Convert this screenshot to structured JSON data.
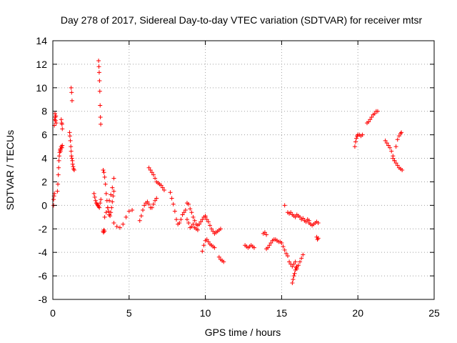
{
  "colors": {
    "marker": "#ff0000",
    "grid": "#a0a0a0",
    "frame": "#000000",
    "background": "#ffffff"
  },
  "chart_data": {
    "type": "scatter",
    "title": "Day 278 of 2017, Sidereal Day-to-day VTEC variation (SDTVAR) for receiver mtsr",
    "xlabel": "GPS time / hours",
    "ylabel": "SDTVAR / TECUs",
    "xlim": [
      0,
      25
    ],
    "ylim": [
      -8,
      14
    ],
    "grid": true,
    "marker": "plus",
    "x_ticks": [
      0,
      5,
      10,
      15,
      20,
      25
    ],
    "y_ticks": [
      -8,
      -6,
      -4,
      -2,
      0,
      2,
      4,
      6,
      8,
      10,
      12,
      14
    ],
    "x_tick_labels": [
      "0",
      "5",
      "10",
      "15",
      "20",
      "25"
    ],
    "y_tick_labels": [
      "-8",
      "-6",
      "-4",
      "-2",
      "0",
      "2",
      "4",
      "6",
      "8",
      "10",
      "12",
      "14"
    ],
    "series": [
      {
        "name": "SDTVAR",
        "segments": [
          {
            "x": [
              0.05,
              0.1,
              0.12,
              0.14,
              0.16,
              0.18,
              0.2,
              0.22
            ],
            "y": [
              0.0,
              6.8,
              7.3,
              7.8,
              7.5,
              7.2,
              7.6,
              7.0
            ]
          },
          {
            "x": [
              0.05,
              0.08,
              0.1
            ],
            "y": [
              0.5,
              0.8,
              1.0
            ]
          },
          {
            "x": [
              0.3,
              0.33,
              0.36,
              0.38,
              0.4,
              0.42,
              0.45,
              0.48,
              0.5
            ],
            "y": [
              1.2,
              1.8,
              2.6,
              3.2,
              3.8,
              4.2,
              4.5,
              4.7,
              4.6
            ]
          },
          {
            "x": [
              0.5,
              0.55,
              0.6,
              0.62
            ],
            "y": [
              4.8,
              5.0,
              4.9,
              5.1
            ]
          },
          {
            "x": [
              0.55,
              0.58,
              0.6,
              0.62
            ],
            "y": [
              7.3,
              7.0,
              6.9,
              6.5
            ]
          },
          {
            "x": [
              1.1,
              1.12,
              1.15,
              1.18,
              1.2,
              1.22,
              1.25,
              1.28,
              1.3,
              1.33,
              1.36,
              1.4
            ],
            "y": [
              6.2,
              5.9,
              5.5,
              5.0,
              4.6,
              4.2,
              4.0,
              3.8,
              3.5,
              3.3,
              3.1,
              3.0
            ]
          },
          {
            "x": [
              1.2,
              1.23,
              1.26
            ],
            "y": [
              10.0,
              9.6,
              8.9
            ]
          },
          {
            "x": [
              2.7,
              2.75,
              2.8,
              2.85,
              2.9,
              2.95,
              3.0,
              3.05,
              3.1,
              3.15
            ],
            "y": [
              1.0,
              0.7,
              0.4,
              0.2,
              0.1,
              0.0,
              -0.1,
              -0.2,
              0.2,
              0.5
            ]
          },
          {
            "x": [
              3.0,
              3.02,
              3.04,
              3.06,
              3.08,
              3.1,
              3.12,
              3.14
            ],
            "y": [
              12.3,
              11.8,
              11.3,
              10.6,
              9.7,
              8.5,
              7.5,
              6.9
            ]
          },
          {
            "x": [
              3.3,
              3.32,
              3.35,
              3.38
            ],
            "y": [
              -2.2,
              -2.3,
              -2.1,
              -2.2
            ]
          },
          {
            "x": [
              3.3,
              3.35,
              3.4,
              3.45,
              3.5,
              3.55,
              3.6,
              3.65,
              3.7,
              3.75,
              3.8,
              3.85,
              3.9,
              3.95,
              4.0
            ],
            "y": [
              3.0,
              2.8,
              2.4,
              1.8,
              1.0,
              0.4,
              -0.2,
              -0.5,
              -0.8,
              -0.9,
              -0.6,
              -0.2,
              0.3,
              0.8,
              1.2
            ]
          },
          {
            "x": [
              3.4,
              3.5,
              3.6,
              3.7,
              3.8,
              3.9,
              4.0
            ],
            "y": [
              -1.0,
              -0.6,
              -0.2,
              0.4,
              0.9,
              1.5,
              2.3
            ]
          },
          {
            "x": [
              4.0,
              4.2,
              4.4,
              4.6,
              4.8,
              5.0,
              5.2
            ],
            "y": [
              -1.5,
              -1.8,
              -1.9,
              -1.6,
              -1.0,
              -0.5,
              -0.4
            ]
          },
          {
            "x": [
              5.7,
              5.8,
              5.9,
              6.0,
              6.1,
              6.2,
              6.3,
              6.4,
              6.5,
              6.6,
              6.7,
              6.8
            ],
            "y": [
              -1.3,
              -0.9,
              -0.4,
              0.0,
              0.2,
              0.3,
              0.1,
              -0.2,
              -0.2,
              0.1,
              0.4,
              0.6
            ]
          },
          {
            "x": [
              6.3,
              6.4,
              6.5,
              6.6,
              6.7,
              6.8,
              6.9,
              7.0,
              7.1,
              7.2,
              7.3
            ],
            "y": [
              3.2,
              3.0,
              2.8,
              2.6,
              2.3,
              2.0,
              1.9,
              1.8,
              1.7,
              1.5,
              1.3
            ]
          },
          {
            "x": [
              7.7,
              7.8,
              7.9,
              8.0,
              8.1,
              8.2,
              8.3,
              8.4,
              8.5,
              8.6,
              8.7
            ],
            "y": [
              1.1,
              0.6,
              0.1,
              -0.5,
              -1.2,
              -1.6,
              -1.5,
              -1.2,
              -0.8,
              -0.6,
              -0.4
            ]
          },
          {
            "x": [
              8.8,
              8.9,
              9.0,
              9.1,
              9.2,
              9.3,
              9.4,
              9.5,
              9.6,
              9.7,
              9.8,
              9.9,
              10.0
            ],
            "y": [
              0.2,
              0.1,
              -0.3,
              -0.6,
              -1.0,
              -1.3,
              -1.6,
              -1.7,
              -1.6,
              -1.4,
              -1.2,
              -1.0,
              -0.9
            ]
          },
          {
            "x": [
              8.8,
              8.9,
              9.0,
              9.1,
              9.2,
              9.3,
              9.4,
              9.5
            ],
            "y": [
              -1.2,
              -1.5,
              -1.9,
              -1.8,
              -1.6,
              -1.9,
              -2.0,
              -2.1
            ]
          },
          {
            "x": [
              10.0,
              10.1,
              10.2,
              10.3,
              10.4,
              10.5,
              10.6,
              10.7,
              10.8,
              10.9,
              11.0
            ],
            "y": [
              -1.0,
              -1.2,
              -1.4,
              -1.7,
              -2.0,
              -2.2,
              -2.4,
              -2.3,
              -2.2,
              -2.1,
              -2.0
            ]
          },
          {
            "x": [
              9.8,
              9.9,
              10.0,
              10.1,
              10.2,
              10.3,
              10.4,
              10.5,
              10.6
            ],
            "y": [
              -3.9,
              -3.4,
              -3.0,
              -2.9,
              -3.1,
              -3.3,
              -3.4,
              -3.5,
              -3.6
            ]
          },
          {
            "x": [
              10.9,
              11.0,
              11.1,
              11.2
            ],
            "y": [
              -4.4,
              -4.6,
              -4.7,
              -4.8
            ]
          },
          {
            "x": [
              12.6,
              12.7,
              12.8,
              12.9,
              13.0,
              13.1,
              13.2
            ],
            "y": [
              -3.4,
              -3.5,
              -3.6,
              -3.5,
              -3.4,
              -3.5,
              -3.6
            ]
          },
          {
            "x": [
              13.8,
              13.9,
              14.0
            ],
            "y": [
              -2.4,
              -2.3,
              -2.5
            ]
          },
          {
            "x": [
              14.0,
              14.1,
              14.2,
              14.3,
              14.4,
              14.5,
              14.6,
              14.7,
              14.8,
              14.9,
              15.0,
              15.1,
              15.2,
              15.3,
              15.4
            ],
            "y": [
              -3.7,
              -3.6,
              -3.4,
              -3.2,
              -3.0,
              -2.9,
              -2.9,
              -3.0,
              -3.1,
              -3.1,
              -3.2,
              -3.5,
              -3.8,
              -4.1,
              -4.3
            ]
          },
          {
            "x": [
              15.5,
              15.6,
              15.7,
              15.8,
              15.9,
              16.0,
              16.1,
              16.2,
              16.3,
              16.4
            ],
            "y": [
              -4.8,
              -5.0,
              -5.2,
              -5.0,
              -4.8,
              -5.2,
              -5.1,
              -4.8,
              -4.5,
              -4.2
            ]
          },
          {
            "x": [
              15.7,
              15.75,
              15.8,
              15.85,
              15.9,
              15.95,
              16.0
            ],
            "y": [
              -6.6,
              -6.3,
              -6.0,
              -5.8,
              -5.5,
              -5.3,
              -5.4
            ]
          },
          {
            "x": [
              15.4,
              15.5,
              15.6,
              15.7,
              15.8,
              15.9,
              16.0,
              16.1,
              16.2,
              16.3,
              16.4,
              16.5,
              16.6,
              16.7,
              16.8
            ],
            "y": [
              -0.6,
              -0.7,
              -0.6,
              -0.8,
              -0.9,
              -1.0,
              -0.8,
              -0.9,
              -1.0,
              -1.2,
              -1.1,
              -1.3,
              -1.4,
              -1.2,
              -1.3
            ]
          },
          {
            "x": [
              15.2
            ],
            "y": [
              0.0
            ]
          },
          {
            "x": [
              16.8,
              16.9,
              17.0,
              17.1,
              17.2,
              17.3,
              17.4
            ],
            "y": [
              -1.5,
              -1.6,
              -1.7,
              -1.6,
              -1.5,
              -1.4,
              -1.5
            ]
          },
          {
            "x": [
              17.3,
              17.35,
              17.4
            ],
            "y": [
              -2.7,
              -2.9,
              -2.8
            ]
          },
          {
            "x": [
              19.8,
              19.85,
              19.9,
              19.95,
              20.0,
              20.1,
              20.2,
              20.3
            ],
            "y": [
              5.0,
              5.4,
              5.7,
              5.9,
              6.0,
              6.0,
              5.9,
              6.0
            ]
          },
          {
            "x": [
              20.6,
              20.7,
              20.8,
              20.9,
              21.0,
              21.1,
              21.2,
              21.3
            ],
            "y": [
              7.0,
              7.1,
              7.3,
              7.5,
              7.7,
              7.8,
              8.0,
              8.0
            ]
          },
          {
            "x": [
              21.8,
              21.9,
              22.0,
              22.1,
              22.2,
              22.3,
              22.4
            ],
            "y": [
              5.5,
              5.3,
              5.1,
              4.9,
              4.6,
              4.2,
              3.8
            ]
          },
          {
            "x": [
              22.3,
              22.4,
              22.5,
              22.6,
              22.7,
              22.8,
              22.9
            ],
            "y": [
              4.0,
              3.8,
              3.6,
              3.4,
              3.2,
              3.1,
              3.0
            ]
          },
          {
            "x": [
              22.5,
              22.6,
              22.7,
              22.8,
              22.85
            ],
            "y": [
              5.0,
              5.6,
              5.9,
              6.1,
              6.2
            ]
          }
        ]
      }
    ]
  }
}
